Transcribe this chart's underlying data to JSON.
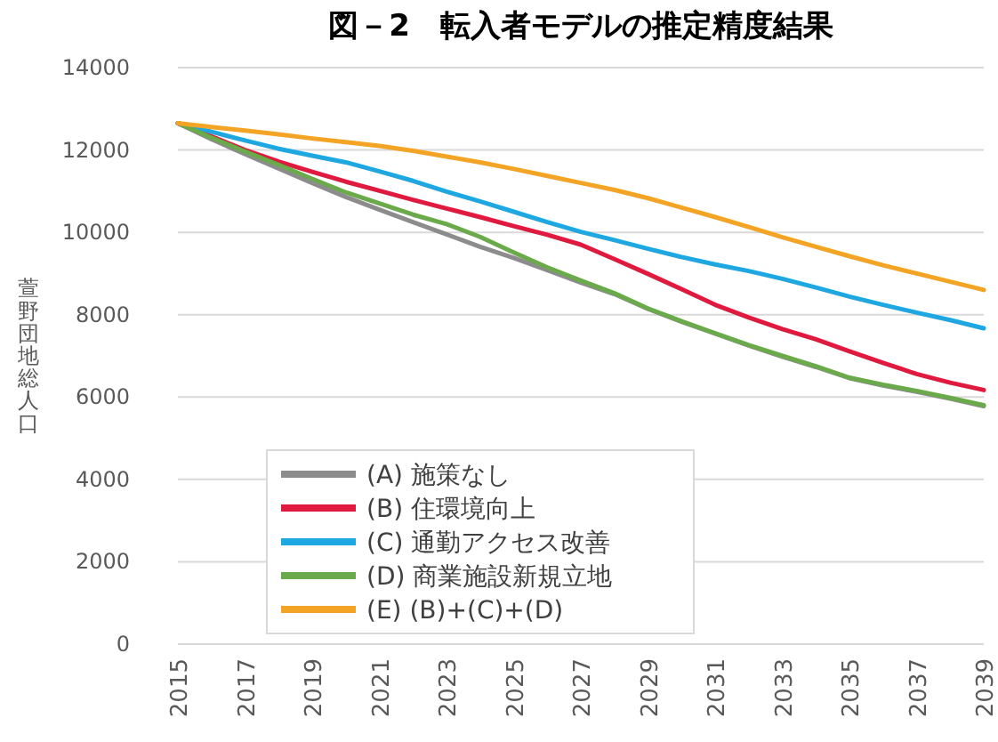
{
  "chart_data": {
    "type": "line",
    "title": "図－2　転入者モデルの推定精度結果",
    "ylabel": "萱野団地総人口",
    "x": [
      2015,
      2016,
      2017,
      2018,
      2019,
      2020,
      2021,
      2022,
      2023,
      2024,
      2025,
      2026,
      2027,
      2028,
      2029,
      2030,
      2031,
      2032,
      2033,
      2034,
      2035,
      2036,
      2037,
      2038,
      2039
    ],
    "xlim": [
      2015,
      2039
    ],
    "xticks": [
      2015,
      2017,
      2019,
      2021,
      2023,
      2025,
      2027,
      2029,
      2031,
      2033,
      2035,
      2037,
      2039
    ],
    "ylim": [
      0,
      14000
    ],
    "yticks": [
      0,
      2000,
      4000,
      6000,
      8000,
      10000,
      12000,
      14000
    ],
    "grid": "y",
    "legend": "bottom left",
    "marker": "none",
    "line_style": "solid",
    "series": [
      {
        "name": "(A) 施策なし",
        "color": "#8c8c8c",
        "values": [
          12650,
          12260,
          11900,
          11550,
          11200,
          10860,
          10550,
          10250,
          9950,
          9650,
          9380,
          9080,
          8780,
          8500,
          8140,
          7830,
          7540,
          7250,
          6980,
          6730,
          6460,
          6280,
          6130,
          5960,
          5780
        ]
      },
      {
        "name": "(B) 住環境向上",
        "color": "#e0193f",
        "values": [
          12650,
          12330,
          12000,
          11720,
          11470,
          11230,
          11010,
          10790,
          10580,
          10370,
          10150,
          9940,
          9700,
          9350,
          8990,
          8620,
          8240,
          7930,
          7650,
          7400,
          7110,
          6830,
          6560,
          6350,
          6170
        ]
      },
      {
        "name": "(C) 通勤アクセス改善",
        "color": "#1ea7e0",
        "values": [
          12650,
          12440,
          12230,
          12030,
          11860,
          11700,
          11480,
          11250,
          10990,
          10750,
          10500,
          10250,
          10010,
          9810,
          9600,
          9400,
          9220,
          9060,
          8870,
          8660,
          8440,
          8240,
          8050,
          7870,
          7670
        ]
      },
      {
        "name": "(D) 商業施設新規立地",
        "color": "#6aaa4a",
        "values": [
          12650,
          12300,
          11960,
          11640,
          11300,
          10970,
          10700,
          10430,
          10200,
          9890,
          9510,
          9150,
          8830,
          8520,
          8150,
          7840,
          7550,
          7260,
          7000,
          6750,
          6470,
          6300,
          6150,
          5980,
          5800
        ]
      },
      {
        "name": "(E) (B)+(C)+(D)",
        "color": "#f4a425",
        "values": [
          12650,
          12560,
          12470,
          12380,
          12280,
          12190,
          12100,
          11980,
          11840,
          11700,
          11540,
          11370,
          11200,
          11030,
          10830,
          10600,
          10370,
          10130,
          9880,
          9650,
          9420,
          9200,
          9000,
          8800,
          8600
        ]
      }
    ]
  }
}
